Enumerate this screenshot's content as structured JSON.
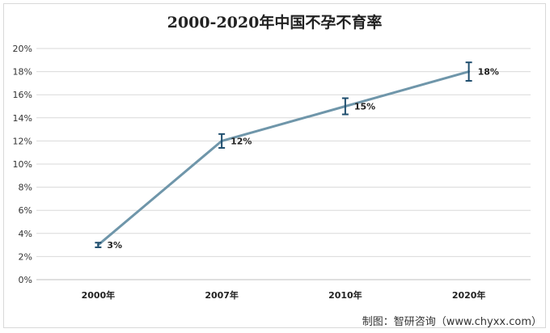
{
  "source_text": "制图：智研咨询（www.chyxx.com）",
  "chart_data": {
    "type": "line",
    "title": "2000-2020年中国不孕不育率",
    "categories": [
      "2000年",
      "2007年",
      "2010年",
      "2020年"
    ],
    "series": [
      {
        "values": [
          3,
          12,
          15,
          18
        ],
        "error": [
          0.2,
          0.6,
          0.7,
          0.8
        ],
        "data_labels": [
          "3%",
          "12%",
          "15%",
          "18%"
        ]
      }
    ],
    "ylim": [
      0,
      20
    ],
    "yticks": [
      "0%",
      "2%",
      "4%",
      "6%",
      "8%",
      "10%",
      "12%",
      "14%",
      "16%",
      "18%",
      "20%"
    ],
    "grid": true,
    "colors": {
      "line": "#6f96aa",
      "error_bar": "#1f4e6e",
      "grid": "#d9d9d9"
    }
  }
}
